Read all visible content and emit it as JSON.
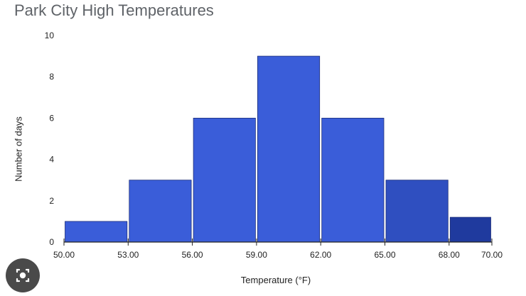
{
  "chart_data": {
    "type": "bar",
    "title": "Park City High Temperatures",
    "xlabel": "Temperature (°F)",
    "ylabel": "Number of days",
    "bin_edges": [
      50.0,
      53.0,
      56.0,
      59.0,
      62.0,
      65.0,
      68.0,
      70.0
    ],
    "x_tick_labels": [
      "50.00",
      "53.00",
      "56.00",
      "59.00",
      "62.00",
      "65.00",
      "68.00",
      "70.00"
    ],
    "values": [
      1,
      3,
      6,
      9,
      6,
      3,
      1.2
    ],
    "y_ticks": [
      0,
      2,
      4,
      6,
      8,
      10
    ],
    "ylim": [
      0,
      10
    ],
    "bar_colors": [
      "#3a5dd9",
      "#3a5dd9",
      "#3a5dd9",
      "#3a5dd9",
      "#3a5dd9",
      "#2f4fc0",
      "#1f3a9e"
    ],
    "grid": false
  },
  "icons": {
    "lens": "lens-icon"
  }
}
